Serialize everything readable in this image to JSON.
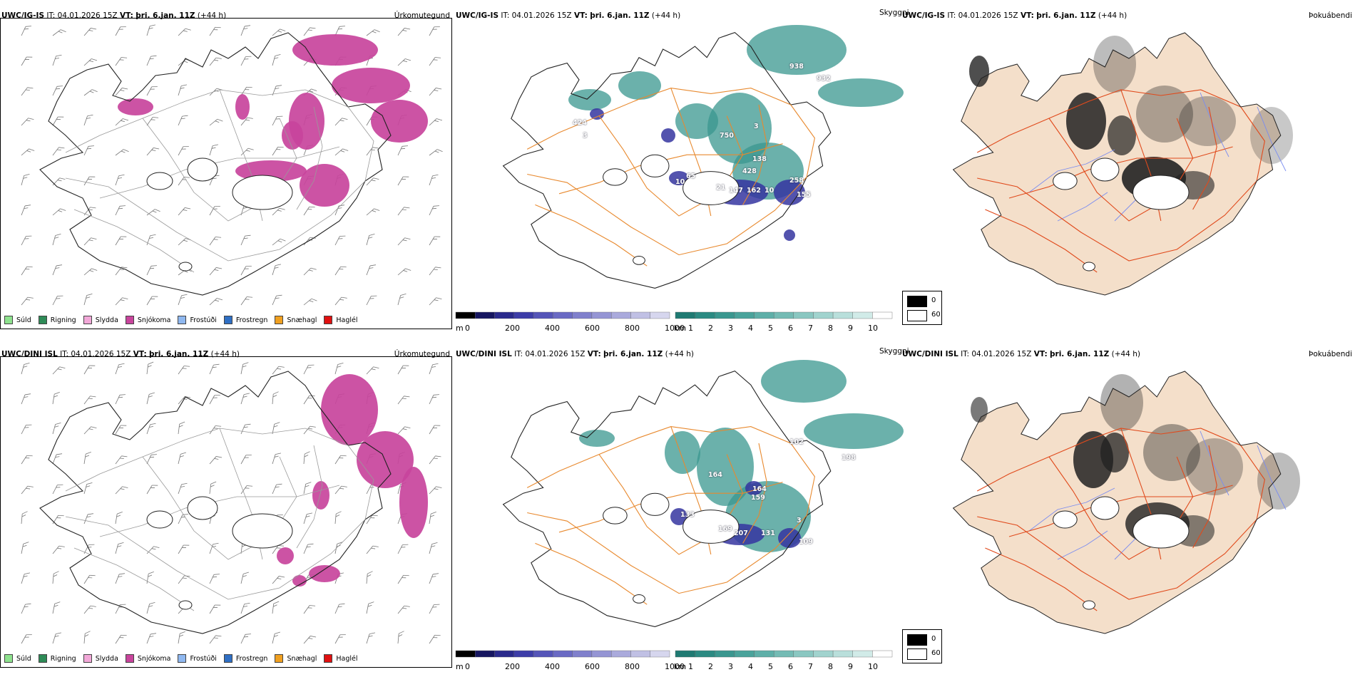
{
  "runs": [
    {
      "model": "UWC/IG-IS",
      "it_label": "IT:",
      "it_value": "04.01.2026 15Z",
      "vt_label": "VT:",
      "vt_value": "þri. 6.jan. 11Z",
      "lead": "(+44 h)",
      "cloud_labels": [
        "938",
        "932",
        "424",
        "3",
        "750",
        "138",
        "3",
        "428",
        "258",
        "147",
        "162",
        "10",
        "155",
        "10",
        "65",
        "21"
      ]
    },
    {
      "model": "UWC/DINI ISL",
      "it_label": "IT:",
      "it_value": "04.01.2026 15Z",
      "vt_label": "VT:",
      "vt_value": "þri. 6.jan. 11Z",
      "lead": "(+44 h)",
      "cloud_labels": [
        "102",
        "198",
        "164",
        "164",
        "159",
        "133",
        "169",
        "207",
        "131",
        "109",
        "3"
      ]
    }
  ],
  "panel_titles": {
    "precip_type": "Úrkomutegund",
    "visibility": "Skyggni",
    "fog": "Þokuábendi"
  },
  "precip_legend": [
    {
      "label": "Súld",
      "color": "#8ee28e"
    },
    {
      "label": "Rigning",
      "color": "#2e8b57"
    },
    {
      "label": "Slydda",
      "color": "#f2a8d8"
    },
    {
      "label": "Snjókoma",
      "color": "#c8449c"
    },
    {
      "label": "Frostúði",
      "color": "#8fb8f0"
    },
    {
      "label": "Frostregn",
      "color": "#2f6fc4"
    },
    {
      "label": "Snæhagl",
      "color": "#f0a020"
    },
    {
      "label": "Haglél",
      "color": "#e01010"
    }
  ],
  "cloudbase_scale": {
    "unit": "m",
    "ticks": [
      "0",
      "200",
      "400",
      "600",
      "800",
      "1000"
    ],
    "colors": [
      "#000000",
      "#161660",
      "#2a2a8c",
      "#3d3da8",
      "#5555b8",
      "#6a6ac4",
      "#8080cc",
      "#9595d4",
      "#aaaadc",
      "#c0c0e4",
      "#d6d6ee"
    ]
  },
  "visibility_scale": {
    "unit": "km",
    "ticks": [
      "1",
      "2",
      "3",
      "4",
      "5",
      "6",
      "7",
      "8",
      "9",
      "10"
    ],
    "colors": [
      "#1f7a72",
      "#2b8a82",
      "#3a978f",
      "#4aa39b",
      "#5eafa8",
      "#74bbb4",
      "#8ac7c1",
      "#a1d3ce",
      "#b9dfdb",
      "#d1ebe8",
      "#ffffff"
    ]
  },
  "fog_legend": {
    "ticks": [
      "0",
      "60"
    ],
    "colors": [
      "#000000",
      "#ffffff"
    ]
  }
}
